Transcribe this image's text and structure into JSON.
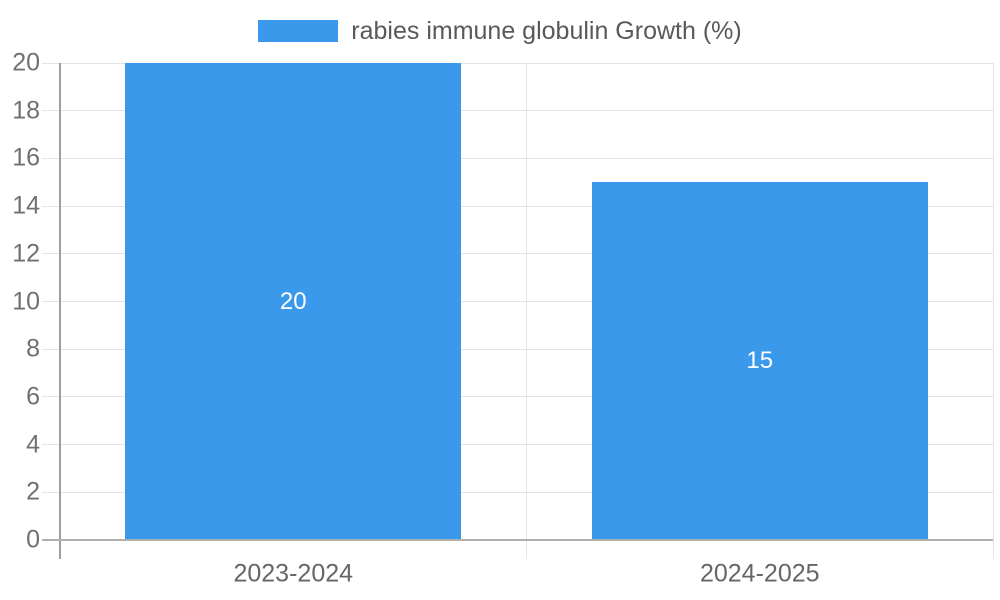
{
  "chart_data": {
    "type": "bar",
    "title": "",
    "categories": [
      "2023-2024",
      "2024-2025"
    ],
    "series": [
      {
        "name": "rabies immune globulin Growth (%)",
        "values": [
          20,
          15
        ]
      }
    ],
    "data_labels": [
      "20",
      "15"
    ],
    "xlabel": "",
    "ylabel": "",
    "ylim": [
      0,
      20
    ],
    "yticks": [
      0,
      2,
      4,
      6,
      8,
      10,
      12,
      14,
      16,
      18,
      20
    ],
    "grid": true,
    "legend_position": "top-center",
    "colors": {
      "bar": "#3B99EC",
      "grid_line": "#E3E3E3",
      "zero_line": "#AFAFAF",
      "axis_line": "#9E9E9E",
      "tick_text": "#707070",
      "label_text": "#666666",
      "legend_text": "#595959",
      "value_text": "#FFFFFF",
      "background": "#FFFFFF"
    }
  }
}
